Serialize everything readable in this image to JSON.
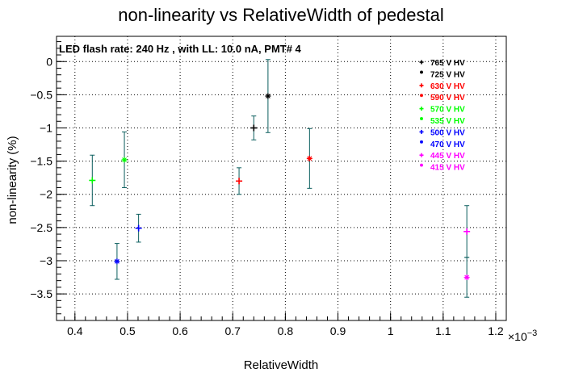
{
  "chart_data": {
    "type": "scatter",
    "title": "non-linearity vs RelativeWidth of pedestal",
    "annotation": "LED flash rate: 240 Hz , with LL: 10.0 nA, PMT# 4",
    "xlabel": "RelativeWidth",
    "ylabel": "non-linearity (%)",
    "x_multiplier_label": "×10",
    "x_multiplier_exp": "−3",
    "xlim": [
      0.000365,
      0.00122
    ],
    "ylim": [
      -3.9,
      0.38
    ],
    "x_ticks": [
      0.0004,
      0.0005,
      0.0006,
      0.0007,
      0.0008,
      0.0009,
      0.001,
      0.0011,
      0.0012
    ],
    "x_tick_labels": [
      "0.4",
      "0.5",
      "0.6",
      "0.7",
      "0.8",
      "0.9",
      "1",
      "1.1",
      "1.2"
    ],
    "y_ticks": [
      0,
      -0.5,
      -1,
      -1.5,
      -2,
      -2.5,
      -3,
      -3.5
    ],
    "y_tick_labels": [
      "0",
      "−0.5",
      "−1",
      "−1.5",
      "−2",
      "−2.5",
      "−3",
      "−3.5"
    ],
    "grid": true,
    "legend_position": "top-right",
    "errorbar_color": "#0b5e5e",
    "series": [
      {
        "name": "765 V HV",
        "color": "#000000",
        "marker": "plus",
        "x": 0.00074,
        "y": -1.0,
        "yerr": 0.18
      },
      {
        "name": "725 V HV",
        "color": "#000000",
        "marker": "star",
        "x": 0.000767,
        "y": -0.52,
        "yerr": 0.55
      },
      {
        "name": "630 V HV",
        "color": "#ff0000",
        "marker": "plus",
        "x": 0.000712,
        "y": -1.8,
        "yerr": 0.2
      },
      {
        "name": "590 V HV",
        "color": "#ff0000",
        "marker": "star",
        "x": 0.000846,
        "y": -1.46,
        "yerr": 0.45
      },
      {
        "name": "570 V HV",
        "color": "#00ff00",
        "marker": "plus",
        "x": 0.000433,
        "y": -1.79,
        "yerr": 0.38
      },
      {
        "name": "535 V HV",
        "color": "#00ff00",
        "marker": "star",
        "x": 0.000494,
        "y": -1.48,
        "yerr": 0.42
      },
      {
        "name": "500 V HV",
        "color": "#0000ff",
        "marker": "plus",
        "x": 0.000521,
        "y": -2.51,
        "yerr": 0.21
      },
      {
        "name": "470 V HV",
        "color": "#0000ff",
        "marker": "star",
        "x": 0.00048,
        "y": -3.01,
        "yerr": 0.27
      },
      {
        "name": "445 V HV",
        "color": "#ff00ff",
        "marker": "plus",
        "x": 0.001145,
        "y": -2.56,
        "yerr": 0.39
      },
      {
        "name": "415 V HV",
        "color": "#ff00ff",
        "marker": "star",
        "x": 0.001145,
        "y": -3.25,
        "yerr": 0.3
      }
    ]
  }
}
